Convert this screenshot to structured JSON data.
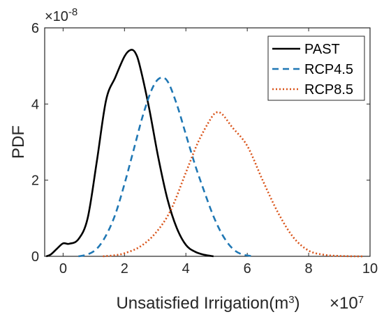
{
  "chart_data": {
    "type": "line",
    "title": "",
    "xlabel": "Unsatisfied Irrigation(m",
    "xlabel_sup": "3",
    "xlabel_close": ")",
    "ylabel": "PDF",
    "x_exponent_base": "×10",
    "x_exponent": "7",
    "y_exponent_base": "×10",
    "y_exponent": "-8",
    "xlim": [
      -0.6,
      10
    ],
    "ylim": [
      0,
      6
    ],
    "xticks": [
      0,
      2,
      4,
      6,
      8,
      10
    ],
    "yticks": [
      0,
      2,
      4,
      6
    ],
    "grid": false,
    "legend_position": "top-right",
    "series": [
      {
        "name": "PAST",
        "color": "#000000",
        "style": "solid",
        "x": [
          -0.55,
          -0.4,
          -0.2,
          0.0,
          0.2,
          0.5,
          0.8,
          1.1,
          1.4,
          1.7,
          2.0,
          2.2,
          2.35,
          2.5,
          2.8,
          3.1,
          3.4,
          3.7,
          4.0,
          4.3,
          4.6,
          4.9
        ],
        "y": [
          0.0,
          0.05,
          0.2,
          0.34,
          0.33,
          0.45,
          1.0,
          2.5,
          4.1,
          4.7,
          5.25,
          5.42,
          5.35,
          5.0,
          3.9,
          2.6,
          1.5,
          0.75,
          0.3,
          0.12,
          0.04,
          0.0
        ]
      },
      {
        "name": "RCP4.5",
        "color": "#1f77b4",
        "style": "dashed",
        "x": [
          0.5,
          0.8,
          1.1,
          1.4,
          1.7,
          2.0,
          2.3,
          2.6,
          2.9,
          3.15,
          3.4,
          3.7,
          4.0,
          4.3,
          4.6,
          4.9,
          5.2,
          5.5,
          5.8,
          6.2
        ],
        "y": [
          0.0,
          0.05,
          0.2,
          0.55,
          1.1,
          1.9,
          2.8,
          3.7,
          4.4,
          4.68,
          4.6,
          4.0,
          3.2,
          2.4,
          1.7,
          1.05,
          0.55,
          0.22,
          0.06,
          0.0
        ]
      },
      {
        "name": "RCP8.5",
        "color": "#d95319",
        "style": "dotted",
        "x": [
          1.3,
          1.7,
          2.0,
          2.5,
          3.0,
          3.5,
          4.0,
          4.4,
          4.8,
          5.0,
          5.2,
          5.5,
          6.0,
          6.5,
          7.0,
          7.5,
          8.0,
          8.5,
          9.0,
          9.5,
          9.8
        ],
        "y": [
          0.0,
          0.03,
          0.08,
          0.25,
          0.6,
          1.2,
          2.2,
          3.0,
          3.6,
          3.78,
          3.72,
          3.4,
          2.9,
          2.0,
          1.15,
          0.5,
          0.15,
          0.04,
          0.01,
          0.0,
          0.0
        ]
      }
    ]
  }
}
